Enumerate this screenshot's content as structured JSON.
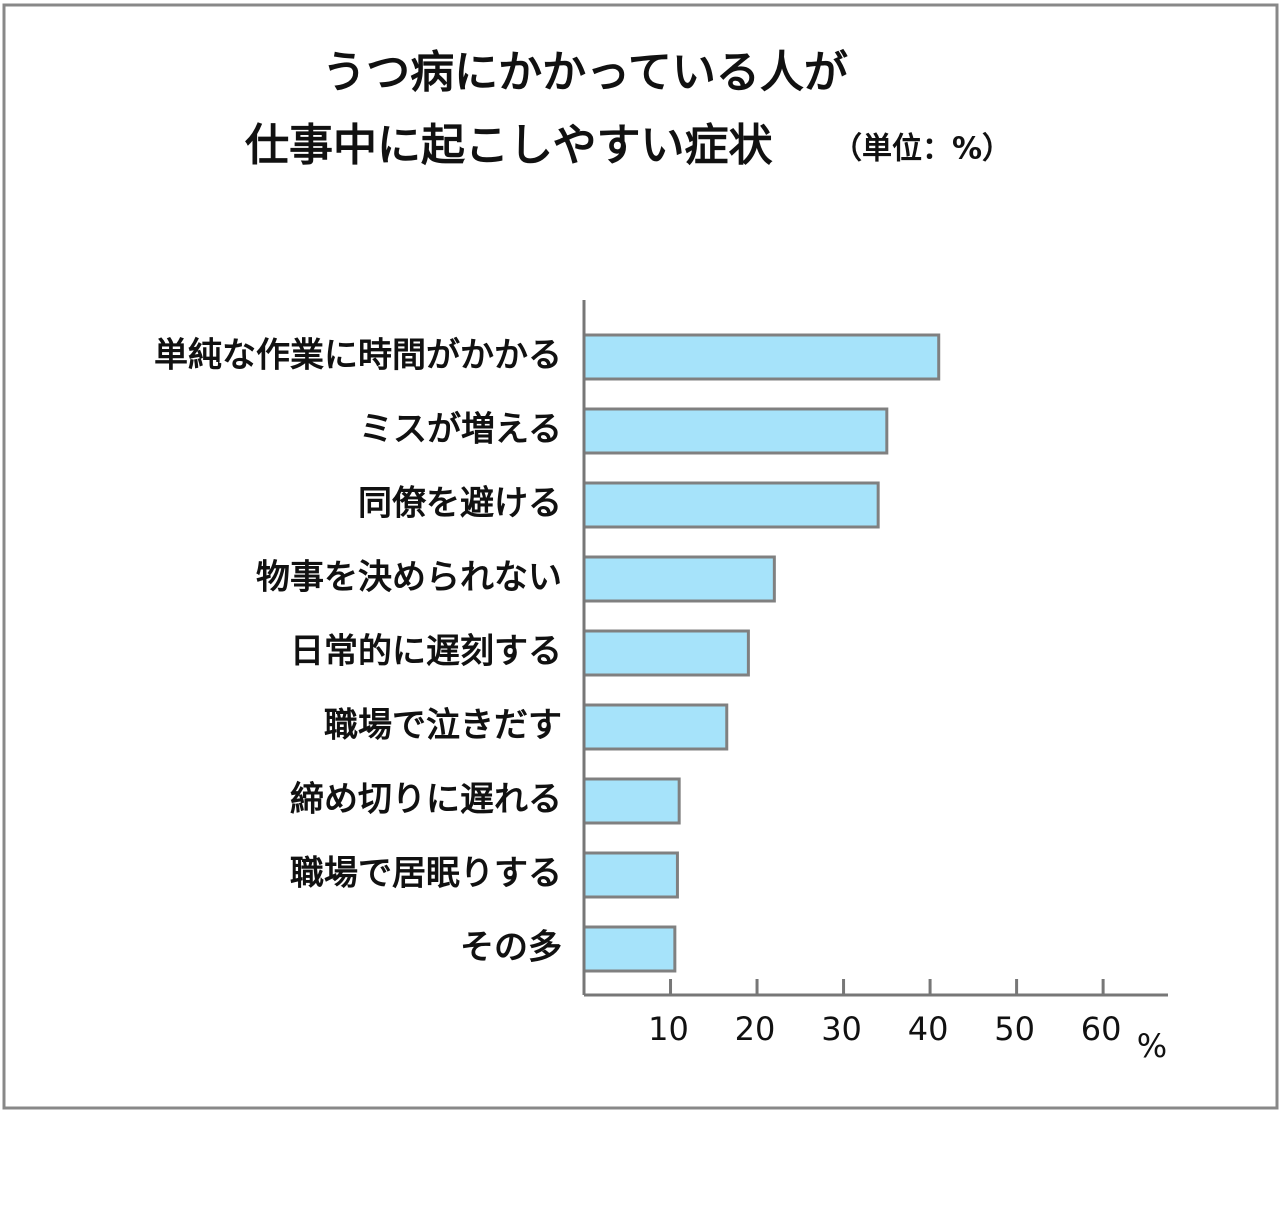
{
  "chart_data": {
    "type": "barh",
    "title": [
      "うつ病にかかっている人が",
      "仕事中に起こしやすい症状"
    ],
    "subtitle": "（単位：%）",
    "x_unit": "%",
    "categories": [
      "単純な作業に時間がかかる",
      "ミスが増える",
      "同僚を避ける",
      "物事を決められない",
      "日常的に遅刻する",
      "職場で泣きだす",
      "締め切りに遅れる",
      "職場で居眠りする",
      "その多"
    ],
    "values": [
      41,
      35,
      34,
      22,
      19,
      16.5,
      11,
      10.8,
      10.5
    ],
    "color": "#a6e3fa",
    "edge_color": "#808080",
    "xlim": [
      0,
      67.5
    ],
    "xticks": [
      10,
      20,
      30,
      40,
      50,
      60
    ]
  }
}
